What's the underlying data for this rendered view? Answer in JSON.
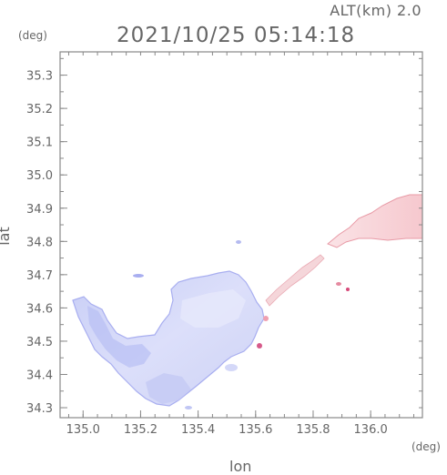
{
  "header": {
    "altitude_label": "ALT(km) 2.0",
    "datetime": "2021/10/25 05:14:18"
  },
  "axes": {
    "x_label": "lon",
    "y_label": "lat",
    "x_unit": "(deg)",
    "y_unit": "(deg)",
    "x_ticks": [
      "135.0",
      "135.2",
      "135.4",
      "135.6",
      "135.8",
      "136.0"
    ],
    "y_ticks": [
      "35.3",
      "35.2",
      "35.1",
      "35.0",
      "34.9",
      "34.8",
      "34.7",
      "34.6",
      "34.5",
      "34.4",
      "34.3"
    ],
    "x_range": [
      134.92,
      136.18
    ],
    "y_range": [
      34.27,
      35.37
    ]
  },
  "colors": {
    "frame": "#888888",
    "west_region": "#d8dcf8",
    "west_edge": "#a8aef0",
    "east_region": "#f7d0d4",
    "east_edge": "#e89aa6"
  }
}
